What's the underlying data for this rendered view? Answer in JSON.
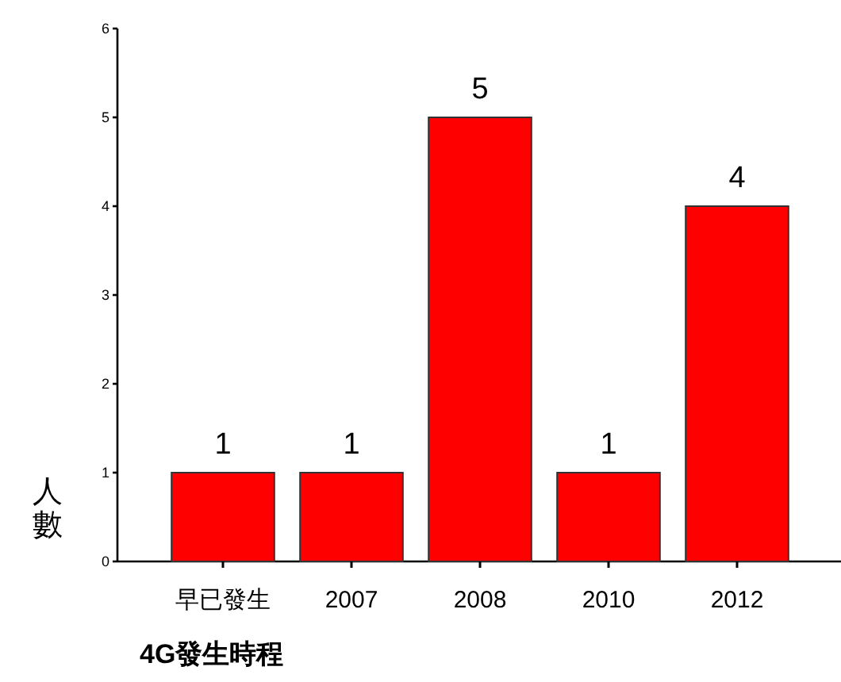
{
  "chart_data": {
    "type": "bar",
    "categories": [
      "早已發生",
      "2007",
      "2008",
      "2010",
      "2012"
    ],
    "values": [
      1,
      1,
      5,
      1,
      4
    ],
    "color": "#ff0000",
    "ylim": [
      0,
      6
    ],
    "yticks": [
      0,
      1,
      2,
      3,
      4,
      5,
      6
    ],
    "xlabel": "4G發生時程",
    "ylabel": "人數",
    "data_labels": true
  }
}
